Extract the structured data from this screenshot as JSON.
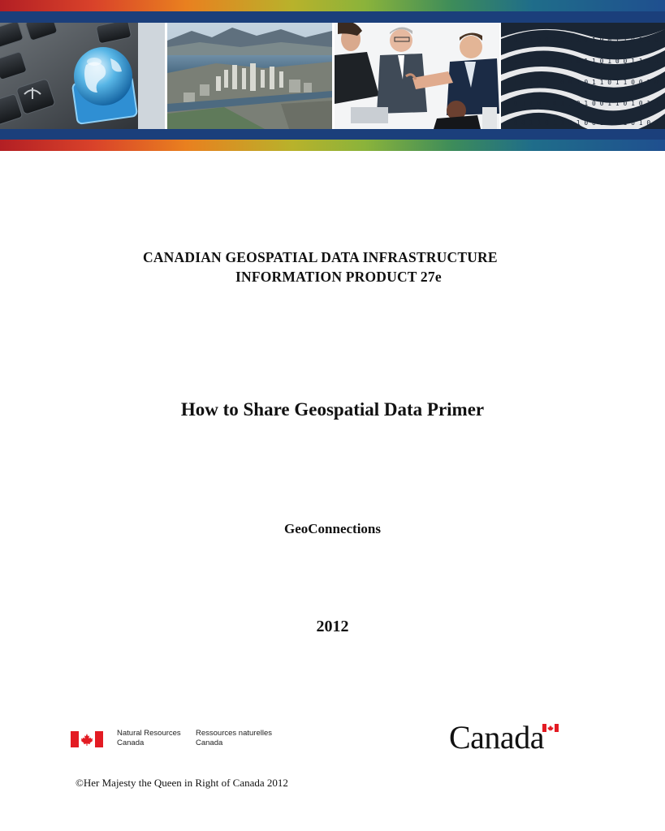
{
  "header": {
    "line1": "CANADIAN GEOSPATIAL DATA INFRASTRUCTURE",
    "line2": "INFORMATION PRODUCT  27e"
  },
  "title": "How to Share Geospatial Data Primer",
  "organization": "GeoConnections",
  "year": "2012",
  "footer": {
    "signature_en_line1": "Natural Resources",
    "signature_en_line2": "Canada",
    "signature_fr_line1": "Ressources naturelles",
    "signature_fr_line2": "Canada",
    "wordmark": "Canada",
    "copyright": "©Her Majesty the Queen in Right of Canada 2012"
  },
  "banner": {
    "photos": [
      "keyboard-globe-photo",
      "city-aerial-photo",
      "business-handshake-photo",
      "binary-data-wave-photo"
    ],
    "colors": {
      "stripe_blue": "#1b3f7b",
      "flag_red": "#e31b23"
    }
  }
}
